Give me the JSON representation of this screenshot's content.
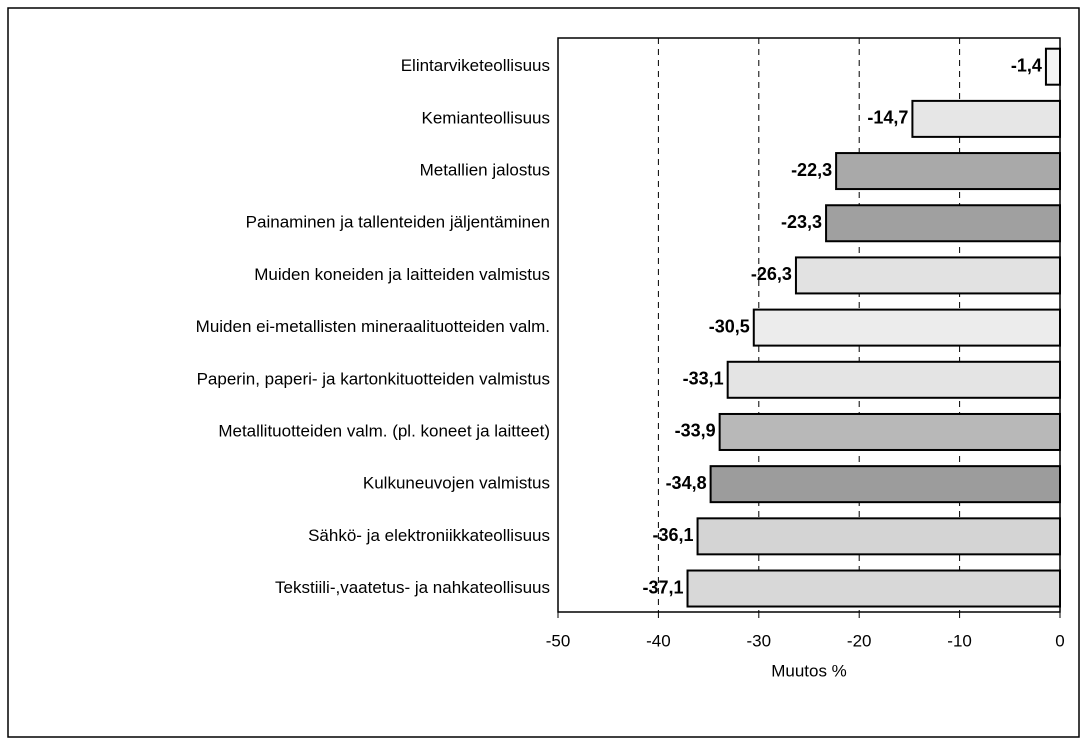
{
  "chart_data": {
    "type": "bar",
    "orientation": "horizontal",
    "x_label": "Muutos %",
    "categories": [
      "Elintarviketeollisuus",
      "Kemianteollisuus",
      "Metallien jalostus",
      "Painaminen ja tallenteiden jäljentäminen",
      "Muiden koneiden ja laitteiden valmistus",
      "Muiden ei-metallisten mineraalituotteiden valm.",
      "Paperin, paperi- ja kartonkituotteiden valmistus",
      "Metallituotteiden valm. (pl. koneet ja laitteet)",
      "Kulkuneuvojen valmistus",
      "Sähkö- ja elektroniikkateollisuus",
      "Tekstiili-,vaatetus- ja nahkateollisuus"
    ],
    "values": [
      -1.4,
      -14.7,
      -22.3,
      -23.3,
      -26.3,
      -30.5,
      -33.1,
      -33.9,
      -34.8,
      -36.1,
      -37.1
    ],
    "value_labels": [
      "-1,4",
      "-14,7",
      "-22,3",
      "-23,3",
      "-26,3",
      "-30,5",
      "-33,1",
      "-33,9",
      "-34,8",
      "-36,1",
      "-37,1"
    ],
    "colors": [
      "#f4f4f4",
      "#e6e6e6",
      "#a9a9a9",
      "#a0a0a0",
      "#e2e2e2",
      "#ececec",
      "#e4e4e4",
      "#b8b8b8",
      "#9c9c9c",
      "#d4d4d4",
      "#d8d8d8"
    ],
    "xlim": [
      -50,
      0
    ],
    "xticks": [
      -50,
      -40,
      -30,
      -20,
      -10,
      0
    ],
    "grid": true
  }
}
